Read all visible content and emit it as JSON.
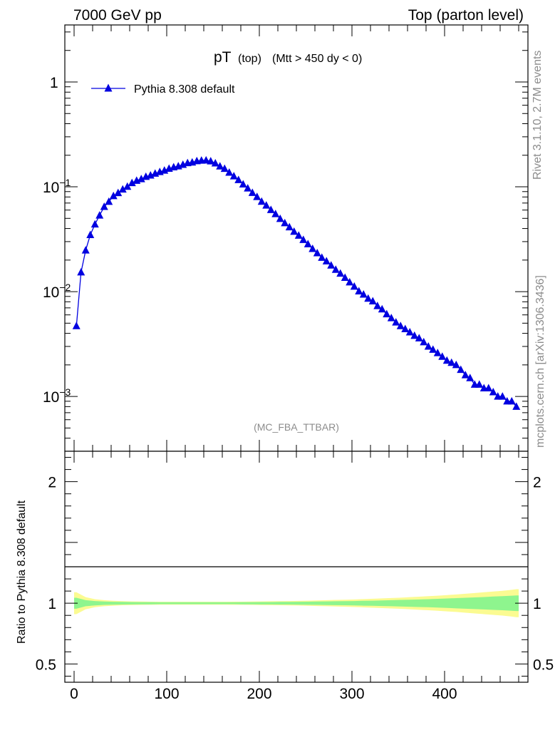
{
  "header": {
    "left": "7000 GeV pp",
    "right": "Top (parton level)"
  },
  "side_labels": {
    "rivet": "Rivet 3.1.10,  2.7M events",
    "mcplots": "mcplots.cern.ch [arXiv:1306.3436]"
  },
  "plot_title": {
    "main": "pT",
    "sub1": "(top)",
    "sub2": "(Mtt > 450 dy < 0)"
  },
  "analysis_tag": "(MC_FBA_TTBAR)",
  "ratio_ylabel": "Ratio to Pythia 8.308 default",
  "colors": {
    "series": "#0000e0",
    "band_inner": "#8ef58e",
    "band_outer": "#fbfb92"
  },
  "chart_data": [
    {
      "type": "line",
      "title": "pT (top) (Mtt > 450 dy < 0)",
      "xlabel": "",
      "ylabel": "",
      "yscale": "log",
      "xlim": [
        -10,
        490
      ],
      "ylim": [
        0.0003,
        3.5
      ],
      "legend_position": "top-left",
      "y_ticks": [
        {
          "value": 1,
          "label": "1"
        },
        {
          "value": 0.1,
          "label": "10",
          "exp": "−1"
        },
        {
          "value": 0.01,
          "label": "10",
          "exp": "−2"
        },
        {
          "value": 0.001,
          "label": "10",
          "exp": "−3"
        }
      ],
      "series": [
        {
          "name": "Pythia 8.308 default",
          "marker": "triangle",
          "x": [
            2.5,
            7.5,
            12.5,
            17.5,
            22.5,
            27.5,
            32.5,
            37.5,
            42.5,
            47.5,
            52.5,
            57.5,
            62.5,
            67.5,
            72.5,
            77.5,
            82.5,
            87.5,
            92.5,
            97.5,
            102.5,
            107.5,
            112.5,
            117.5,
            122.5,
            127.5,
            132.5,
            137.5,
            142.5,
            147.5,
            152.5,
            157.5,
            162.5,
            167.5,
            172.5,
            177.5,
            182.5,
            187.5,
            192.5,
            197.5,
            202.5,
            207.5,
            212.5,
            217.5,
            222.5,
            227.5,
            232.5,
            237.5,
            242.5,
            247.5,
            252.5,
            257.5,
            262.5,
            267.5,
            272.5,
            277.5,
            282.5,
            287.5,
            292.5,
            297.5,
            302.5,
            307.5,
            312.5,
            317.5,
            322.5,
            327.5,
            332.5,
            337.5,
            342.5,
            347.5,
            352.5,
            357.5,
            362.5,
            367.5,
            372.5,
            377.5,
            382.5,
            387.5,
            392.5,
            397.5,
            402.5,
            407.5,
            412.5,
            417.5,
            422.5,
            427.5,
            432.5,
            437.5,
            442.5,
            447.5,
            452.5,
            457.5,
            462.5,
            467.5,
            472.5,
            477.5
          ],
          "values": [
            0.0047,
            0.0153,
            0.0248,
            0.0348,
            0.0439,
            0.0534,
            0.0645,
            0.0721,
            0.0818,
            0.0874,
            0.0946,
            0.1004,
            0.1089,
            0.1146,
            0.1187,
            0.1248,
            0.1285,
            0.1339,
            0.1388,
            0.1431,
            0.1492,
            0.1538,
            0.1572,
            0.1627,
            0.1686,
            0.1712,
            0.1761,
            0.1782,
            0.1789,
            0.1755,
            0.1679,
            0.1569,
            0.1488,
            0.1368,
            0.1263,
            0.1163,
            0.1058,
            0.0968,
            0.0877,
            0.0802,
            0.0723,
            0.0664,
            0.0603,
            0.0551,
            0.0496,
            0.0451,
            0.0412,
            0.0374,
            0.0343,
            0.0312,
            0.0284,
            0.0256,
            0.0233,
            0.0211,
            0.0195,
            0.0178,
            0.0162,
            0.0149,
            0.0136,
            0.0123,
            0.0112,
            0.0101,
            0.0094,
            0.0086,
            0.0081,
            0.0073,
            0.0068,
            0.0061,
            0.0056,
            0.0051,
            0.0047,
            0.0044,
            0.0041,
            0.0038,
            0.0036,
            0.0033,
            0.003,
            0.0028,
            0.0026,
            0.0024,
            0.0022,
            0.0021,
            0.002,
            0.0018,
            0.0016,
            0.0015,
            0.0013,
            0.0013,
            0.0012,
            0.0012,
            0.0011,
            0.001,
            0.001,
            0.0009,
            0.0009,
            0.0008
          ]
        }
      ]
    },
    {
      "type": "area",
      "title": "",
      "xlabel": "",
      "ylabel": "Ratio to Pythia 8.308 default",
      "xlim": [
        -10,
        490
      ],
      "ylim": [
        0.35,
        2.25
      ],
      "y_ticks_left": [
        {
          "value": 0.5,
          "label": "0.5"
        },
        {
          "value": 1,
          "label": "1"
        },
        {
          "value": 2,
          "label": "2"
        }
      ],
      "x_ticks": [
        {
          "value": 0,
          "label": "0"
        },
        {
          "value": 100,
          "label": "100"
        },
        {
          "value": 200,
          "label": "200"
        },
        {
          "value": 300,
          "label": "300"
        },
        {
          "value": 400,
          "label": "400"
        }
      ],
      "x": [
        2.5,
        12.5,
        22.5,
        32.5,
        42.5,
        52.5,
        62.5,
        72.5,
        82.5,
        92.5,
        102.5,
        112.5,
        122.5,
        132.5,
        142.5,
        152.5,
        162.5,
        172.5,
        182.5,
        192.5,
        202.5,
        212.5,
        222.5,
        232.5,
        242.5,
        252.5,
        262.5,
        272.5,
        282.5,
        292.5,
        302.5,
        312.5,
        322.5,
        332.5,
        342.5,
        352.5,
        362.5,
        372.5,
        382.5,
        392.5,
        402.5,
        412.5,
        422.5,
        432.5,
        442.5,
        452.5,
        462.5,
        472.5,
        477.5
      ],
      "ratio": 1.0,
      "inner_halfwidth": [
        0.045,
        0.025,
        0.018,
        0.014,
        0.012,
        0.011,
        0.01,
        0.009,
        0.009,
        0.008,
        0.008,
        0.008,
        0.008,
        0.008,
        0.008,
        0.008,
        0.008,
        0.008,
        0.009,
        0.009,
        0.01,
        0.01,
        0.011,
        0.011,
        0.012,
        0.013,
        0.014,
        0.015,
        0.016,
        0.017,
        0.018,
        0.02,
        0.021,
        0.023,
        0.025,
        0.027,
        0.029,
        0.031,
        0.033,
        0.036,
        0.039,
        0.042,
        0.045,
        0.048,
        0.051,
        0.055,
        0.058,
        0.062,
        0.064
      ],
      "outer_halfwidth": [
        0.09,
        0.05,
        0.033,
        0.025,
        0.02,
        0.017,
        0.015,
        0.014,
        0.013,
        0.012,
        0.012,
        0.012,
        0.012,
        0.012,
        0.012,
        0.012,
        0.012,
        0.013,
        0.013,
        0.014,
        0.015,
        0.016,
        0.017,
        0.018,
        0.019,
        0.021,
        0.023,
        0.025,
        0.027,
        0.029,
        0.031,
        0.034,
        0.037,
        0.04,
        0.043,
        0.046,
        0.05,
        0.054,
        0.058,
        0.062,
        0.067,
        0.072,
        0.078,
        0.084,
        0.09,
        0.096,
        0.102,
        0.11,
        0.115
      ]
    }
  ]
}
